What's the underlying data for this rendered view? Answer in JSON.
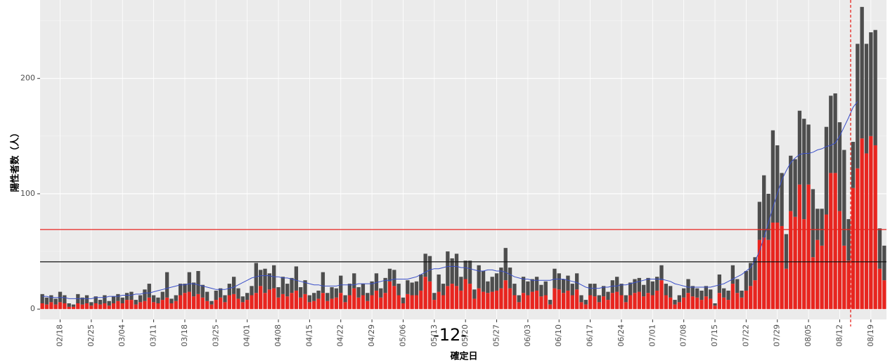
{
  "chart_data": {
    "type": "bar",
    "stacked": true,
    "ylabel": "陽性者数（人）",
    "xlabel": "確定日",
    "page_number": "-12-",
    "categories": [
      null,
      null,
      null,
      null,
      "02/18",
      null,
      null,
      null,
      null,
      null,
      null,
      "02/25",
      null,
      null,
      null,
      null,
      null,
      null,
      "03/04",
      null,
      null,
      null,
      null,
      null,
      null,
      "03/11",
      null,
      null,
      null,
      null,
      null,
      null,
      "03/18",
      null,
      null,
      null,
      null,
      null,
      null,
      "03/25",
      null,
      null,
      null,
      null,
      null,
      null,
      "04/01",
      null,
      null,
      null,
      null,
      null,
      null,
      "04/08",
      null,
      null,
      null,
      null,
      null,
      null,
      "04/15",
      null,
      null,
      null,
      null,
      null,
      null,
      "04/22",
      null,
      null,
      null,
      null,
      null,
      null,
      "04/29",
      null,
      null,
      null,
      null,
      null,
      null,
      "05/06",
      null,
      null,
      null,
      null,
      null,
      null,
      "05/13",
      null,
      null,
      null,
      null,
      null,
      null,
      "05/20",
      null,
      null,
      null,
      null,
      null,
      null,
      "05/27",
      null,
      null,
      null,
      null,
      null,
      null,
      "06/03",
      null,
      null,
      null,
      null,
      null,
      null,
      "06/10",
      null,
      null,
      null,
      null,
      null,
      null,
      "06/17",
      null,
      null,
      null,
      null,
      null,
      null,
      "06/24",
      null,
      null,
      null,
      null,
      null,
      null,
      "07/01",
      null,
      null,
      null,
      null,
      null,
      null,
      "07/08",
      null,
      null,
      null,
      null,
      null,
      null,
      "07/15",
      null,
      null,
      null,
      null,
      null,
      null,
      "07/22",
      null,
      null,
      null,
      null,
      null,
      null,
      "07/29",
      null,
      null,
      null,
      null,
      null,
      null,
      "08/05",
      null,
      null,
      null,
      null,
      null,
      null,
      "08/12",
      null,
      null,
      null,
      null,
      null,
      null,
      "08/19",
      null,
      null,
      null
    ],
    "series": [
      {
        "color": "#e8251f",
        "values": [
          5,
          4,
          6,
          4,
          6,
          5,
          2,
          2,
          5,
          4,
          5,
          3,
          5,
          4,
          5,
          3,
          5,
          7,
          5,
          8,
          8,
          4,
          6,
          7,
          10,
          6,
          5,
          8,
          10,
          5,
          7,
          12,
          14,
          15,
          11,
          13,
          10,
          7,
          4,
          8,
          10,
          6,
          12,
          13,
          9,
          6,
          8,
          12,
          14,
          20,
          14,
          17,
          18,
          10,
          13,
          11,
          14,
          16,
          10,
          13,
          6,
          7,
          9,
          14,
          7,
          9,
          10,
          14,
          6,
          12,
          18,
          10,
          12,
          7,
          12,
          16,
          10,
          14,
          24,
          20,
          12,
          5,
          13,
          12,
          12,
          16,
          28,
          24,
          8,
          15,
          12,
          20,
          22,
          20,
          16,
          26,
          22,
          9,
          18,
          15,
          14,
          15,
          16,
          18,
          25,
          18,
          12,
          6,
          14,
          12,
          15,
          16,
          11,
          12,
          4,
          18,
          17,
          14,
          16,
          12,
          17,
          6,
          4,
          12,
          11,
          6,
          11,
          8,
          14,
          15,
          12,
          6,
          12,
          14,
          15,
          11,
          14,
          12,
          16,
          25,
          12,
          10,
          4,
          6,
          10,
          14,
          11,
          10,
          8,
          11,
          9,
          3,
          14,
          10,
          8,
          22,
          14,
          10,
          16,
          20,
          25,
          60,
          62,
          60,
          75,
          75,
          72,
          35,
          85,
          80,
          108,
          78,
          108,
          45,
          60,
          55,
          82,
          118,
          118,
          85,
          55,
          42,
          105,
          122,
          148,
          135,
          150,
          142,
          35,
          25
        ]
      },
      {
        "color": "#4d4d4d",
        "values": [
          8,
          6,
          6,
          5,
          9,
          7,
          3,
          2,
          8,
          6,
          7,
          3,
          6,
          4,
          7,
          4,
          6,
          6,
          5,
          6,
          7,
          4,
          6,
          10,
          12,
          6,
          5,
          7,
          22,
          4,
          5,
          10,
          8,
          17,
          12,
          20,
          11,
          8,
          3,
          8,
          8,
          6,
          10,
          15,
          9,
          5,
          6,
          8,
          26,
          14,
          21,
          14,
          20,
          9,
          15,
          11,
          13,
          21,
          9,
          12,
          6,
          7,
          7,
          18,
          7,
          10,
          8,
          15,
          6,
          10,
          13,
          9,
          10,
          7,
          12,
          15,
          8,
          13,
          11,
          14,
          10,
          5,
          12,
          11,
          12,
          14,
          20,
          22,
          6,
          15,
          10,
          30,
          22,
          28,
          12,
          16,
          20,
          8,
          20,
          18,
          10,
          13,
          15,
          18,
          28,
          18,
          10,
          6,
          14,
          12,
          11,
          12,
          10,
          12,
          4,
          17,
          14,
          12,
          13,
          10,
          14,
          6,
          4,
          10,
          11,
          6,
          9,
          7,
          11,
          13,
          10,
          6,
          11,
          12,
          12,
          10,
          13,
          12,
          12,
          13,
          10,
          10,
          4,
          6,
          8,
          12,
          9,
          8,
          8,
          9,
          8,
          2,
          16,
          8,
          8,
          16,
          12,
          6,
          17,
          20,
          20,
          33,
          54,
          40,
          80,
          67,
          46,
          30,
          48,
          50,
          64,
          87,
          52,
          59,
          27,
          32,
          76,
          67,
          69,
          77,
          83,
          36,
          40,
          108,
          114,
          95,
          90,
          100,
          35,
          30
        ]
      }
    ],
    "line": {
      "color": "#3a4fc9",
      "values": [
        11,
        11,
        10,
        10,
        10,
        10,
        9,
        9,
        9,
        9,
        9,
        9,
        10,
        10,
        10,
        11,
        11,
        11,
        12,
        12,
        12,
        13,
        13,
        14,
        14,
        15,
        16,
        17,
        18,
        19,
        20,
        21,
        21,
        22,
        22,
        21,
        20,
        19,
        18,
        17,
        17,
        17,
        18,
        19,
        21,
        23,
        25,
        27,
        28,
        29,
        29,
        29,
        28,
        28,
        27,
        27,
        26,
        25,
        24,
        23,
        22,
        21,
        21,
        20,
        20,
        20,
        20,
        21,
        21,
        21,
        21,
        22,
        22,
        22,
        22,
        23,
        24,
        25,
        25,
        26,
        26,
        26,
        26,
        27,
        28,
        30,
        32,
        34,
        35,
        35,
        36,
        37,
        37,
        37,
        36,
        36,
        35,
        34,
        33,
        33,
        34,
        34,
        33,
        33,
        32,
        30,
        28,
        27,
        26,
        26,
        25,
        25,
        25,
        25,
        25,
        26,
        26,
        26,
        25,
        24,
        23,
        21,
        19,
        18,
        18,
        18,
        19,
        19,
        20,
        20,
        21,
        21,
        22,
        23,
        24,
        25,
        26,
        26,
        26,
        26,
        25,
        24,
        22,
        21,
        20,
        19,
        19,
        19,
        19,
        19,
        19,
        20,
        21,
        22,
        24,
        26,
        28,
        30,
        33,
        36,
        42,
        50,
        62,
        75,
        88,
        100,
        112,
        120,
        127,
        131,
        134,
        135,
        135,
        136,
        138,
        139,
        141,
        142,
        144,
        150,
        158,
        166,
        175,
        180,
        null,
        null,
        null,
        null,
        null,
        null
      ]
    },
    "hlines": [
      {
        "value": 69,
        "color": "#e8251f"
      },
      {
        "value": 41,
        "color": "#111111"
      }
    ],
    "ylim": [
      -9,
      268
    ],
    "yticks": [
      0,
      100,
      200
    ],
    "yminor": [
      50,
      150,
      250
    ],
    "grid": true
  }
}
